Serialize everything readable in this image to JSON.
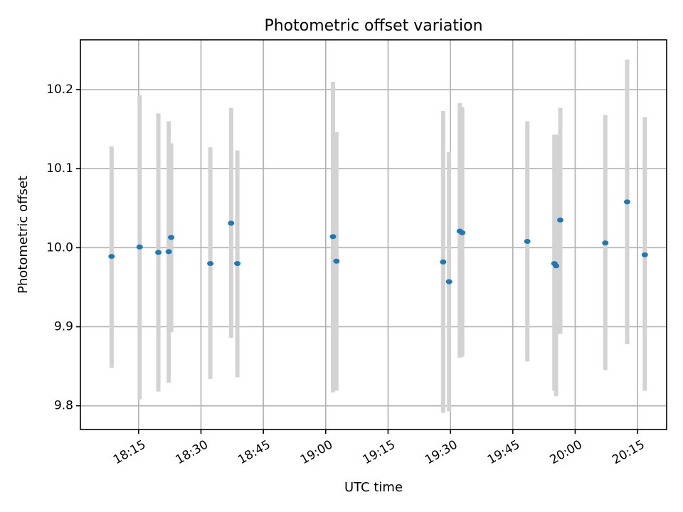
{
  "chart_data": {
    "type": "scatter",
    "title": "Photometric offset variation",
    "xlabel": "UTC time",
    "ylabel": "Photometric offset",
    "x_ticks": [
      "18:15",
      "18:30",
      "18:45",
      "19:00",
      "19:15",
      "19:30",
      "19:45",
      "20:00",
      "20:15"
    ],
    "y_ticks": [
      "9.8",
      "9.9",
      "10.0",
      "10.1",
      "10.2"
    ],
    "xlim": [
      "18:01",
      "20:22"
    ],
    "ylim": [
      9.77,
      10.263
    ],
    "grid": true,
    "marker_color": "#1f77b4",
    "errorbar_color": "#d3d3d3",
    "series": [
      {
        "points": [
          {
            "x": "18:08:30",
            "y": 9.989,
            "ymin": 9.848,
            "ymax": 10.128
          },
          {
            "x": "18:15:15",
            "y": 10.001,
            "ymin": 9.808,
            "ymax": 10.193
          },
          {
            "x": "18:19:45",
            "y": 9.994,
            "ymin": 9.818,
            "ymax": 10.17
          },
          {
            "x": "18:22:15",
            "y": 9.995,
            "ymin": 9.829,
            "ymax": 10.16
          },
          {
            "x": "18:22:50",
            "y": 10.013,
            "ymin": 9.893,
            "ymax": 10.132
          },
          {
            "x": "18:32:15",
            "y": 9.98,
            "ymin": 9.834,
            "ymax": 10.127
          },
          {
            "x": "18:37:15",
            "y": 10.031,
            "ymin": 9.886,
            "ymax": 10.177
          },
          {
            "x": "18:38:45",
            "y": 9.98,
            "ymin": 9.836,
            "ymax": 10.123
          },
          {
            "x": "19:01:45",
            "y": 10.014,
            "ymin": 9.817,
            "ymax": 10.21
          },
          {
            "x": "19:02:35",
            "y": 9.983,
            "ymin": 9.819,
            "ymax": 10.146
          },
          {
            "x": "19:28:15",
            "y": 9.982,
            "ymin": 9.791,
            "ymax": 10.173
          },
          {
            "x": "19:29:40",
            "y": 9.957,
            "ymin": 9.793,
            "ymax": 10.121
          },
          {
            "x": "19:32:15",
            "y": 10.021,
            "ymin": 9.861,
            "ymax": 10.183
          },
          {
            "x": "19:32:50",
            "y": 10.019,
            "ymin": 9.862,
            "ymax": 10.178
          },
          {
            "x": "19:48:30",
            "y": 10.008,
            "ymin": 9.856,
            "ymax": 10.16
          },
          {
            "x": "19:55:00",
            "y": 9.98,
            "ymin": 9.819,
            "ymax": 10.143
          },
          {
            "x": "19:55:25",
            "y": 9.977,
            "ymin": 9.812,
            "ymax": 10.143
          },
          {
            "x": "19:56:25",
            "y": 10.035,
            "ymin": 9.891,
            "ymax": 10.177
          },
          {
            "x": "20:07:15",
            "y": 10.006,
            "ymin": 9.845,
            "ymax": 10.168
          },
          {
            "x": "20:12:30",
            "y": 10.058,
            "ymin": 9.878,
            "ymax": 10.238
          },
          {
            "x": "20:16:45",
            "y": 9.991,
            "ymin": 9.819,
            "ymax": 10.165
          }
        ]
      }
    ]
  }
}
